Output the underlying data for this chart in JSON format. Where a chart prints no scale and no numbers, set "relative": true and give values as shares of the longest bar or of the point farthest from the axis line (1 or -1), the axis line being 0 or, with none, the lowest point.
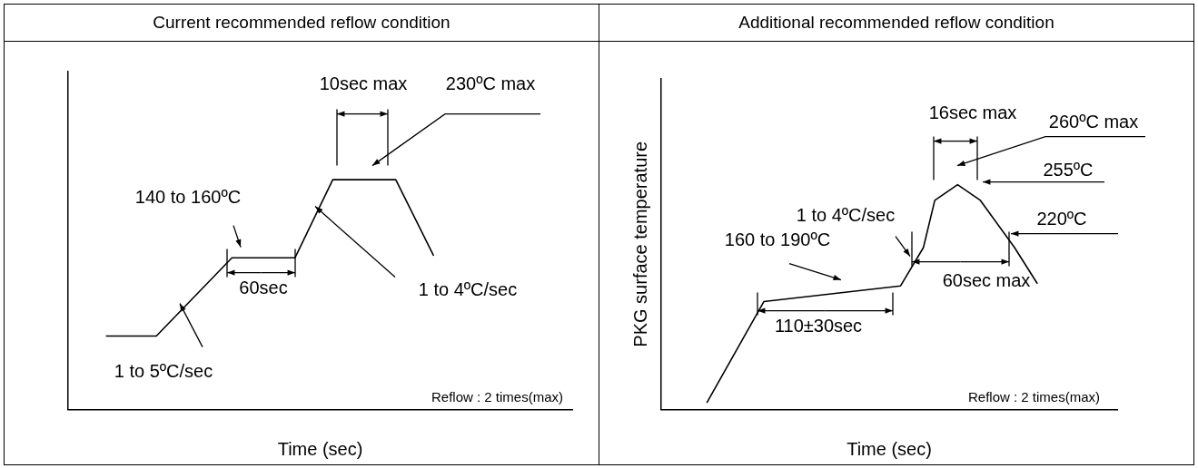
{
  "chart_data": [
    {
      "type": "line",
      "title": "Current recommended reflow condition",
      "xlabel": "Time (sec)",
      "relative": true,
      "legend": false,
      "grid": false,
      "marker": "none",
      "line_style": "solid",
      "categories": [
        null,
        null,
        null,
        null,
        null,
        null,
        null,
        null,
        null,
        null,
        null,
        null,
        null,
        null,
        null,
        null,
        null,
        null,
        null,
        null,
        null,
        null,
        null,
        null,
        null,
        null,
        null,
        null,
        null,
        null,
        null,
        null,
        null,
        null,
        null,
        null,
        null,
        null,
        null,
        null,
        null
      ],
      "series": [
        {
          "color": "#000000",
          "values": [
            null,
            null,
            null,
            0.32,
            null,
            null,
            null,
            0.32,
            null,
            null,
            null,
            null,
            null,
            0.66,
            null,
            null,
            null,
            null,
            0.66,
            null,
            null,
            1,
            null,
            null,
            null,
            null,
            1,
            null,
            null,
            0.67,
            null,
            null,
            null,
            null,
            null,
            null,
            null,
            null,
            null,
            null,
            null
          ]
        }
      ],
      "annotations": [
        "10sec max",
        "230ºC max",
        "140 to 160ºC",
        "60sec",
        "1 to 4ºC/sec",
        "1 to 5ºC/sec",
        "Reflow : 2 times(max)"
      ]
    },
    {
      "type": "line",
      "title": "Additional recommended reflow condition",
      "xlabel": "Time (sec)",
      "ylabel": "PKG surface temperature",
      "relative": true,
      "legend": false,
      "grid": false,
      "marker": "none",
      "line_style": "solid",
      "categories": [
        null,
        null,
        null,
        null,
        null,
        null,
        null,
        null,
        null,
        null,
        null,
        null,
        null,
        null,
        null,
        null,
        null,
        null,
        null,
        null,
        null,
        null,
        null,
        null,
        null,
        null,
        null,
        null,
        null,
        null,
        null,
        null,
        null,
        null,
        null,
        null,
        null,
        null,
        null,
        null,
        null
      ],
      "series": [
        {
          "color": "#000000",
          "values": [
            null,
            null,
            null,
            null,
            0.03,
            null,
            null,
            null,
            null,
            0.48,
            null,
            null,
            null,
            null,
            null,
            null,
            null,
            null,
            null,
            null,
            null,
            0.55,
            null,
            0.72,
            0.93,
            null,
            1,
            null,
            0.93,
            null,
            null,
            0.72,
            null,
            0.56,
            null,
            null,
            null,
            null,
            null,
            null,
            null
          ]
        }
      ],
      "annotations": [
        "16sec max",
        "260ºC max",
        "255ºC",
        "220ºC",
        "60sec max",
        "1 to 4ºC/sec",
        "160 to 190ºC",
        "110±30sec",
        "Reflow : 2 times(max)"
      ]
    }
  ]
}
